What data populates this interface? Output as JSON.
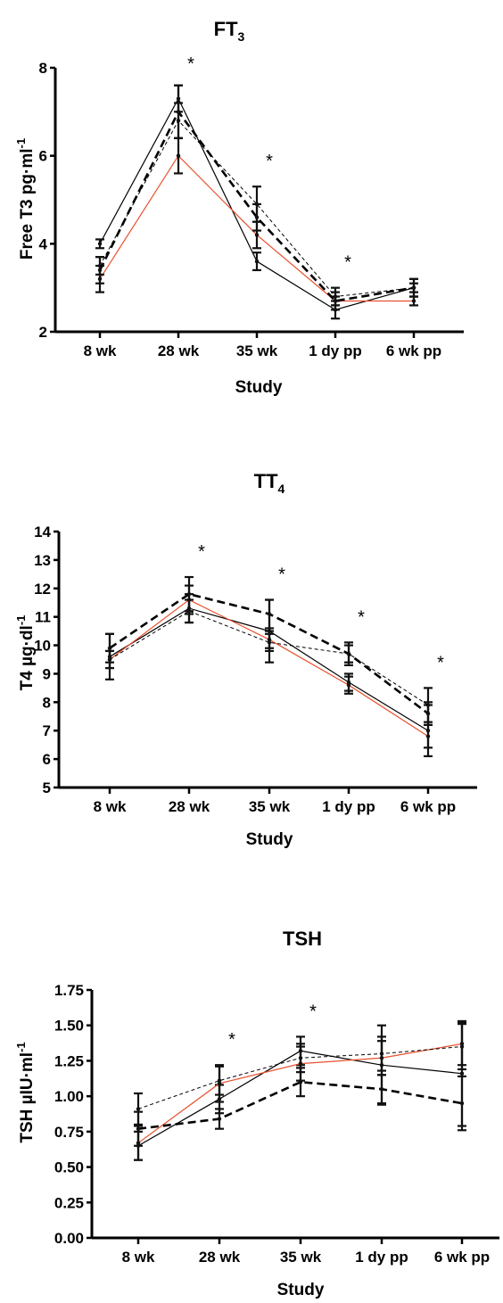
{
  "colors": {
    "axis": "#000000",
    "red_series": "#e8502f",
    "black_series": "#000000"
  },
  "chart_data": [
    {
      "type": "line",
      "title": "FT",
      "title_sub": "3",
      "xlabel": "Study",
      "ylabel": "Free T3 pg·ml",
      "ylabel_sup": "-1",
      "categories": [
        "8 wk",
        "28 wk",
        "35 wk",
        "1 dy pp",
        "6 wk pp"
      ],
      "ylim": [
        2,
        8
      ],
      "yticks": [
        2,
        4,
        6,
        8
      ],
      "ytick_labels": [
        "2",
        "4",
        "6",
        "8"
      ],
      "significance": [
        "",
        "*",
        "*",
        "*",
        ""
      ],
      "series": [
        {
          "style": "thin-solid-black",
          "values": [
            4.0,
            7.3,
            3.6,
            2.5,
            3.0
          ],
          "errors": [
            0.1,
            0.3,
            0.2,
            0.2,
            0.1
          ]
        },
        {
          "style": "thin-solid-red",
          "values": [
            3.2,
            6.0,
            4.2,
            2.7,
            2.7
          ],
          "errors": [
            0.3,
            0.4,
            0.3,
            0.1,
            0.1
          ]
        },
        {
          "style": "thin-dashed-black",
          "values": [
            3.5,
            6.8,
            4.9,
            2.8,
            3.0
          ],
          "errors": [
            0.2,
            0.4,
            0.4,
            0.2,
            0.2
          ]
        },
        {
          "style": "thick-dashed-black",
          "values": [
            3.4,
            7.0,
            4.6,
            2.7,
            3.0
          ],
          "errors": [
            0.3,
            0.6,
            0.3,
            0.2,
            0.2
          ]
        }
      ]
    },
    {
      "type": "line",
      "title": "TT",
      "title_sub": "4",
      "xlabel": "Study",
      "ylabel": "T4 µg·dl",
      "ylabel_sup": "-1",
      "categories": [
        "8 wk",
        "28 wk",
        "35 wk",
        "1 dy pp",
        "6 wk pp"
      ],
      "ylim": [
        5,
        14
      ],
      "yticks": [
        5,
        6,
        7,
        8,
        9,
        10,
        11,
        12,
        13,
        14
      ],
      "ytick_labels": [
        "5",
        "6",
        "7",
        "8",
        "9",
        "10",
        "11",
        "12",
        "13",
        "14"
      ],
      "significance": [
        "",
        "*",
        "*",
        "*",
        "*"
      ],
      "series": [
        {
          "style": "thin-solid-black",
          "values": [
            9.6,
            11.3,
            10.5,
            8.7,
            7.0
          ],
          "errors": [
            0.8,
            0.5,
            1.1,
            0.3,
            0.9
          ]
        },
        {
          "style": "thin-solid-red",
          "values": [
            9.5,
            11.6,
            10.2,
            8.6,
            6.8
          ],
          "errors": [
            0.3,
            0.5,
            0.3,
            0.3,
            0.4
          ]
        },
        {
          "style": "thin-dashed-black",
          "values": [
            9.5,
            11.2,
            10.1,
            9.7,
            7.9
          ],
          "errors": [
            0.3,
            0.4,
            0.3,
            0.3,
            0.6
          ]
        },
        {
          "style": "thick-dashed-black",
          "values": [
            9.9,
            11.8,
            11.1,
            9.7,
            7.6
          ],
          "errors": [
            0.5,
            0.6,
            0.5,
            0.4,
            0.4
          ]
        }
      ]
    },
    {
      "type": "line",
      "title": "TSH",
      "title_sub": "",
      "xlabel": "Study",
      "ylabel": "TSH µIU·ml",
      "ylabel_sup": "-1",
      "categories": [
        "8 wk",
        "28 wk",
        "35 wk",
        "1 dy pp",
        "6 wk pp"
      ],
      "ylim": [
        0,
        1.75
      ],
      "yticks": [
        0,
        0.25,
        0.5,
        0.75,
        1.0,
        1.25,
        1.5,
        1.75
      ],
      "ytick_labels": [
        "0.00",
        "0.25",
        "0.50",
        "0.75",
        "1.00",
        "1.25",
        "1.50",
        "1.75"
      ],
      "significance": [
        "",
        "*",
        "*",
        "",
        ""
      ],
      "series": [
        {
          "style": "thin-solid-black",
          "values": [
            0.65,
            0.98,
            1.32,
            1.22,
            1.16
          ],
          "errors": [
            0.1,
            0.1,
            0.1,
            0.28,
            0.37
          ]
        },
        {
          "style": "thin-solid-red",
          "values": [
            0.67,
            1.09,
            1.23,
            1.27,
            1.37
          ],
          "errors": [
            0.12,
            0.13,
            0.12,
            0.12,
            0.15
          ]
        },
        {
          "style": "thin-dashed-black",
          "values": [
            0.91,
            1.11,
            1.27,
            1.3,
            1.35
          ],
          "errors": [
            0.11,
            0.1,
            0.1,
            0.12,
            0.16
          ]
        },
        {
          "style": "thick-dashed-black",
          "values": [
            0.77,
            0.84,
            1.1,
            1.05,
            0.95
          ],
          "errors": [
            0.12,
            0.07,
            0.1,
            0.1,
            0.19
          ]
        }
      ]
    }
  ]
}
